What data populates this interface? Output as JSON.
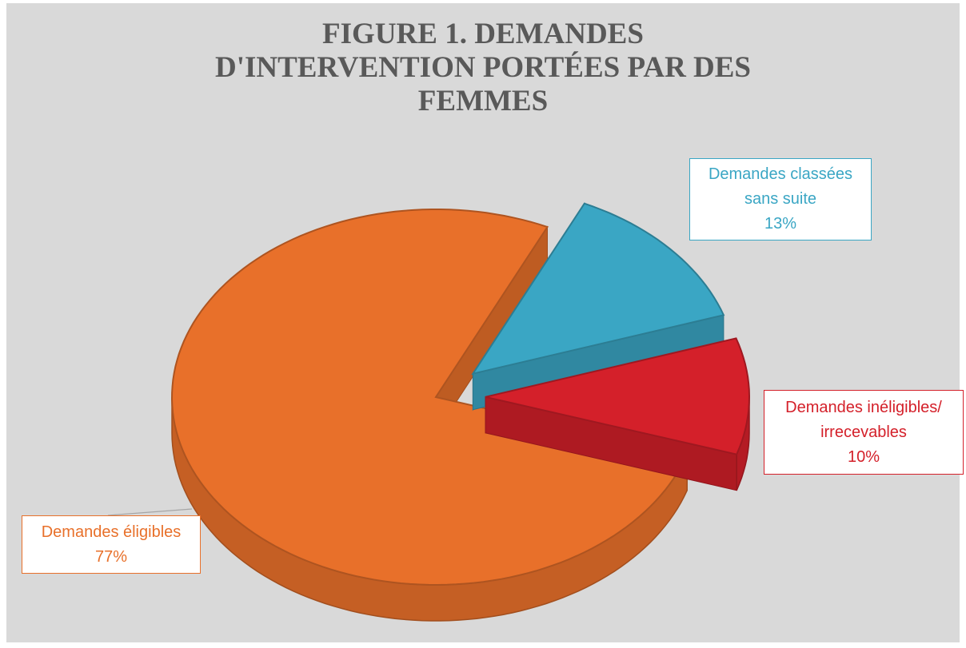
{
  "chart_data": {
    "type": "pie",
    "title": "FIGURE 1. DEMANDES D'INTERVENTION PORTÉES PAR DES FEMMES",
    "categories": [
      "Demandes éligibles",
      "Demandes classées sans suite",
      "Demandes inéligibles/ irrecevables"
    ],
    "values": [
      77,
      13,
      10
    ],
    "value_labels": [
      "77%",
      "13%",
      "10%"
    ],
    "colors": [
      "#e8702a",
      "#3aa6c4",
      "#d4202a"
    ]
  }
}
